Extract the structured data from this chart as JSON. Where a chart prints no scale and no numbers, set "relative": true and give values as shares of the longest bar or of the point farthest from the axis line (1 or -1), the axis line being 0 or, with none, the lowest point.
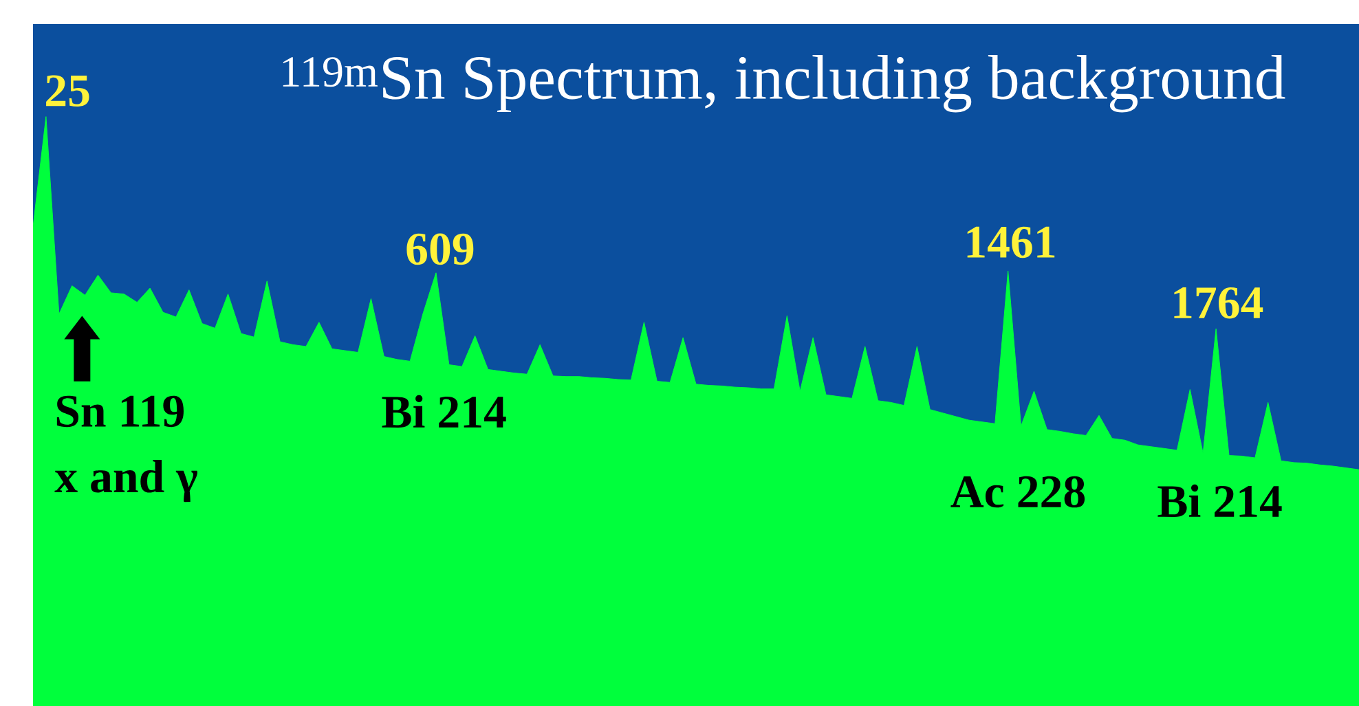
{
  "chart_data": {
    "type": "area",
    "title": "$^{119m}$Sn Spectrum, including background",
    "relative": true,
    "tick_labels": false,
    "color": "#00ff3c",
    "categories": [
      null,
      null,
      null,
      null,
      null,
      null,
      null,
      null,
      null,
      null,
      null,
      null,
      null,
      null,
      null,
      null,
      null,
      null,
      null,
      null,
      null,
      null,
      null,
      null,
      null,
      null,
      null,
      null,
      null,
      null,
      null,
      null,
      null,
      null,
      null,
      null,
      null,
      null,
      null,
      null,
      null,
      null,
      null,
      null,
      null,
      null,
      null,
      null,
      null,
      null,
      null,
      null,
      null,
      null,
      null,
      null,
      null,
      null,
      null,
      null,
      null,
      null,
      null,
      null,
      null,
      null,
      null,
      null,
      null,
      null,
      null,
      null,
      null,
      null,
      null,
      null,
      null,
      null,
      null,
      null,
      null,
      null,
      null,
      null,
      null,
      null,
      null,
      null,
      null,
      null,
      null,
      null,
      null,
      null,
      null,
      null,
      null,
      null,
      null,
      null,
      null,
      null,
      null
    ],
    "values": [
      0.813,
      1.0,
      0.665,
      0.713,
      0.697,
      0.731,
      0.701,
      0.699,
      0.685,
      0.709,
      0.668,
      0.66,
      0.706,
      0.649,
      0.641,
      0.699,
      0.632,
      0.626,
      0.721,
      0.618,
      0.613,
      0.61,
      0.651,
      0.606,
      0.603,
      0.6,
      0.691,
      0.593,
      0.588,
      0.585,
      0.666,
      0.735,
      0.579,
      0.576,
      0.628,
      0.571,
      0.568,
      0.565,
      0.563,
      0.613,
      0.56,
      0.559,
      0.559,
      0.557,
      0.556,
      0.554,
      0.553,
      0.651,
      0.551,
      0.549,
      0.625,
      0.546,
      0.544,
      0.543,
      0.541,
      0.54,
      0.538,
      0.538,
      0.662,
      0.534,
      0.625,
      0.528,
      0.525,
      0.522,
      0.61,
      0.518,
      0.515,
      0.51,
      0.61,
      0.503,
      0.497,
      0.491,
      0.485,
      0.482,
      0.479,
      0.738,
      0.475,
      0.534,
      0.469,
      0.466,
      0.462,
      0.459,
      0.493,
      0.454,
      0.451,
      0.443,
      0.44,
      0.437,
      0.434,
      0.537,
      0.429,
      0.64,
      0.425,
      0.424,
      0.421,
      0.515,
      0.416,
      0.413,
      0.412,
      0.409,
      0.407,
      0.404,
      0.401
    ],
    "annotations": [
      "25",
      "609",
      "1461",
      "1764",
      "Sn 119",
      "x and γ",
      "Bi 214",
      "Ac 228",
      "Bi 214"
    ]
  }
}
